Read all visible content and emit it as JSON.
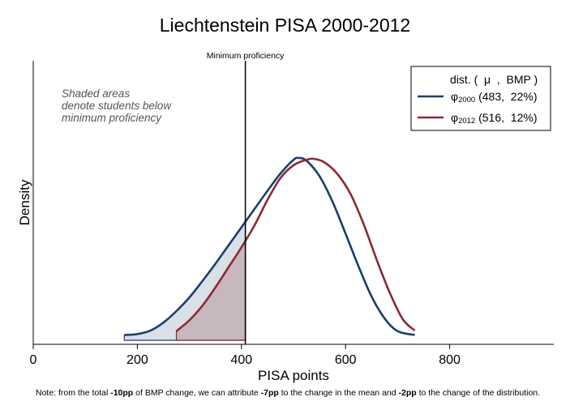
{
  "chart_data": {
    "type": "area",
    "title": "Liechtenstein PISA 2000-2012",
    "xlabel": "PISA points",
    "ylabel": "Density",
    "xlim": [
      0,
      1000
    ],
    "ylim": [
      0,
      1
    ],
    "x_ticks": [
      0,
      200,
      400,
      600,
      800
    ],
    "x_tick_labels": [
      "0",
      "200",
      "400",
      "600",
      "800"
    ],
    "threshold": {
      "x": 407.47,
      "label": "Minimum proficiency"
    },
    "annotation": [
      "Shaded areas",
      "denote students below",
      "minimum proficiency"
    ],
    "legend": {
      "position": "top-right",
      "header": "dist. (  μ  ,  BMP )",
      "entries": [
        {
          "symbol": "φ",
          "sub": "2000",
          "stats": " (483,  22%)"
        },
        {
          "symbol": "φ",
          "sub": "2012",
          "stats": " (516,  12%)"
        }
      ]
    },
    "series": [
      {
        "name": "2000",
        "mean": 483,
        "bmp": "22%",
        "color": "#1a3f6e",
        "fill": "#d5dde6",
        "points": [
          [
            175,
            0.029
          ],
          [
            200,
            0.034
          ],
          [
            225,
            0.053
          ],
          [
            250,
            0.097
          ],
          [
            275,
            0.16
          ],
          [
            300,
            0.235
          ],
          [
            325,
            0.325
          ],
          [
            350,
            0.42
          ],
          [
            375,
            0.52
          ],
          [
            400,
            0.62
          ],
          [
            425,
            0.72
          ],
          [
            450,
            0.82
          ],
          [
            475,
            0.915
          ],
          [
            500,
            0.99
          ],
          [
            510,
            1.0
          ],
          [
            525,
            0.985
          ],
          [
            550,
            0.9
          ],
          [
            575,
            0.76
          ],
          [
            600,
            0.585
          ],
          [
            625,
            0.405
          ],
          [
            650,
            0.24
          ],
          [
            675,
            0.12
          ],
          [
            700,
            0.05
          ],
          [
            733,
            0.029
          ]
        ]
      },
      {
        "name": "2012",
        "mean": 516,
        "bmp": "12%",
        "color": "#8b2a35",
        "fill": "#c4b3ba",
        "points": [
          [
            275,
            0.05
          ],
          [
            300,
            0.11
          ],
          [
            325,
            0.19
          ],
          [
            350,
            0.29
          ],
          [
            375,
            0.4
          ],
          [
            400,
            0.51
          ],
          [
            425,
            0.63
          ],
          [
            450,
            0.77
          ],
          [
            475,
            0.89
          ],
          [
            500,
            0.96
          ],
          [
            525,
            0.99
          ],
          [
            540,
            0.995
          ],
          [
            560,
            0.975
          ],
          [
            585,
            0.91
          ],
          [
            610,
            0.8
          ],
          [
            635,
            0.635
          ],
          [
            660,
            0.44
          ],
          [
            685,
            0.26
          ],
          [
            710,
            0.115
          ],
          [
            733,
            0.053
          ]
        ]
      }
    ]
  },
  "note": {
    "t1": "Note: from the total ",
    "b1": "-10pp",
    "t2": " of BMP change, we can attribute  ",
    "b2": "-7pp",
    "t3": " to the change in the mean and  ",
    "b3": "-2pp",
    "t4": " to the change of the distribution."
  }
}
